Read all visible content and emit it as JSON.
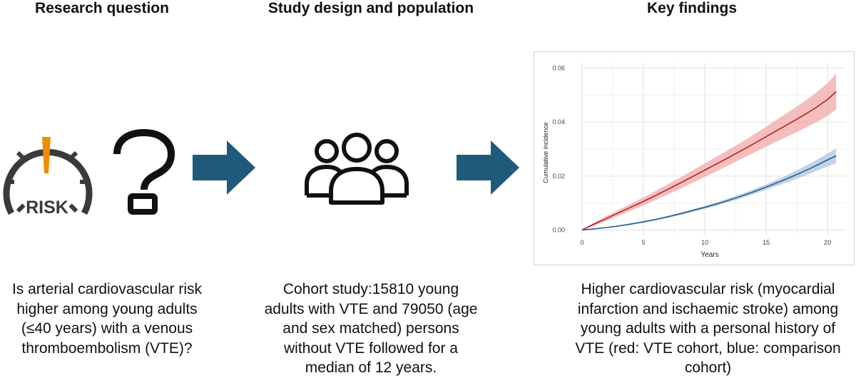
{
  "columns": [
    {
      "heading": "Research question",
      "caption_lines": [
        "Is arterial cardiovascular risk",
        "higher among young adults",
        "(≤40 years) with a venous",
        "thromboembolism (VTE)?"
      ]
    },
    {
      "heading": "Study design and population",
      "caption_lines": [
        "Cohort study:15810 young",
        "adults with VTE and 79050 (age",
        "and sex matched) persons",
        "without VTE followed for a",
        "median of 12 years."
      ]
    },
    {
      "heading": "Key findings",
      "caption_lines": [
        "Higher cardiovascular risk (myocardial",
        "infarction and ischaemic stroke) among",
        "young adults with a personal history of",
        "VTE (red: VTE cohort, blue: comparison",
        "cohort)"
      ]
    }
  ],
  "risk_gauge": {
    "label": "RISK",
    "needle_color": "#F08C00",
    "dial_color": "#3a3a3a"
  },
  "question_mark": "?",
  "arrow_color": "#1F5A7A",
  "chart_data": {
    "type": "line",
    "xlabel": "Years",
    "ylabel": "Cumulative incidence",
    "xlim": [
      0,
      21.5
    ],
    "ylim": [
      -0.002,
      0.062
    ],
    "xticks": [
      0,
      5,
      10,
      15,
      20
    ],
    "xtick_labels": [
      "0",
      "5",
      "10",
      "15",
      "20"
    ],
    "yticks": [
      0.0,
      0.02,
      0.04,
      0.06
    ],
    "ytick_labels": [
      "0.00",
      "0.02",
      "0.04",
      "0.06"
    ],
    "grid": true,
    "series": [
      {
        "name": "VTE cohort",
        "color": "#B22222",
        "band_color": "#F2A8A8",
        "x": [
          0,
          1,
          2,
          3,
          4,
          5,
          6,
          7,
          8,
          9,
          10,
          11,
          12,
          13,
          14,
          15,
          16,
          17,
          18,
          19,
          20,
          20.7
        ],
        "y": [
          0.0,
          0.0022,
          0.0043,
          0.0064,
          0.0085,
          0.0106,
          0.0128,
          0.0151,
          0.0174,
          0.0198,
          0.0222,
          0.0246,
          0.027,
          0.0295,
          0.032,
          0.0346,
          0.0372,
          0.0398,
          0.0424,
          0.0452,
          0.0484,
          0.0513
        ],
        "lower": [
          0.0,
          0.0016,
          0.0034,
          0.0053,
          0.0072,
          0.0091,
          0.0111,
          0.0132,
          0.0153,
          0.0175,
          0.0197,
          0.0219,
          0.0241,
          0.0264,
          0.0286,
          0.0309,
          0.0331,
          0.0353,
          0.0374,
          0.0397,
          0.0423,
          0.0447
        ],
        "upper": [
          0.0,
          0.0028,
          0.0052,
          0.0075,
          0.0098,
          0.0121,
          0.0145,
          0.017,
          0.0195,
          0.0221,
          0.0247,
          0.0273,
          0.0299,
          0.0326,
          0.0354,
          0.0383,
          0.0413,
          0.0443,
          0.0474,
          0.0507,
          0.0545,
          0.058
        ]
      },
      {
        "name": "Comparison cohort",
        "color": "#2B5C8A",
        "band_color": "#A8C6E0",
        "x": [
          0,
          1,
          2,
          3,
          4,
          5,
          6,
          7,
          8,
          9,
          10,
          11,
          12,
          13,
          14,
          15,
          16,
          17,
          18,
          19,
          20,
          20.7
        ],
        "y": [
          0.0,
          0.0004,
          0.0009,
          0.0015,
          0.0022,
          0.003,
          0.0039,
          0.0049,
          0.006,
          0.0072,
          0.0084,
          0.0097,
          0.0111,
          0.0126,
          0.0142,
          0.0159,
          0.0177,
          0.0196,
          0.0216,
          0.0237,
          0.026,
          0.0275
        ],
        "lower": [
          0.0,
          0.0003,
          0.0007,
          0.0013,
          0.0019,
          0.0027,
          0.0036,
          0.0045,
          0.0056,
          0.0067,
          0.0079,
          0.0091,
          0.0104,
          0.0118,
          0.0133,
          0.0149,
          0.0165,
          0.0182,
          0.0199,
          0.0217,
          0.0236,
          0.0248
        ],
        "upper": [
          0.0,
          0.0005,
          0.0011,
          0.0017,
          0.0025,
          0.0033,
          0.0042,
          0.0053,
          0.0064,
          0.0077,
          0.0089,
          0.0103,
          0.0118,
          0.0134,
          0.0151,
          0.0169,
          0.0189,
          0.021,
          0.0233,
          0.0257,
          0.0284,
          0.0302
        ]
      }
    ]
  }
}
